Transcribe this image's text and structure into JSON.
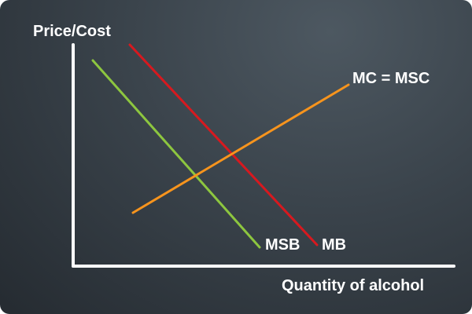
{
  "diagram": {
    "y_axis_label": "Price/Cost",
    "x_axis_label": "Quantity of alcohol",
    "curves": [
      {
        "key": "msb",
        "label": "MSB",
        "color": "#8dc63f"
      },
      {
        "key": "mb",
        "label": "MB",
        "color": "#d7191f"
      },
      {
        "key": "mc",
        "label": "MC = MSC",
        "color": "#f7941d"
      }
    ],
    "axis_color": "#ffffff"
  }
}
